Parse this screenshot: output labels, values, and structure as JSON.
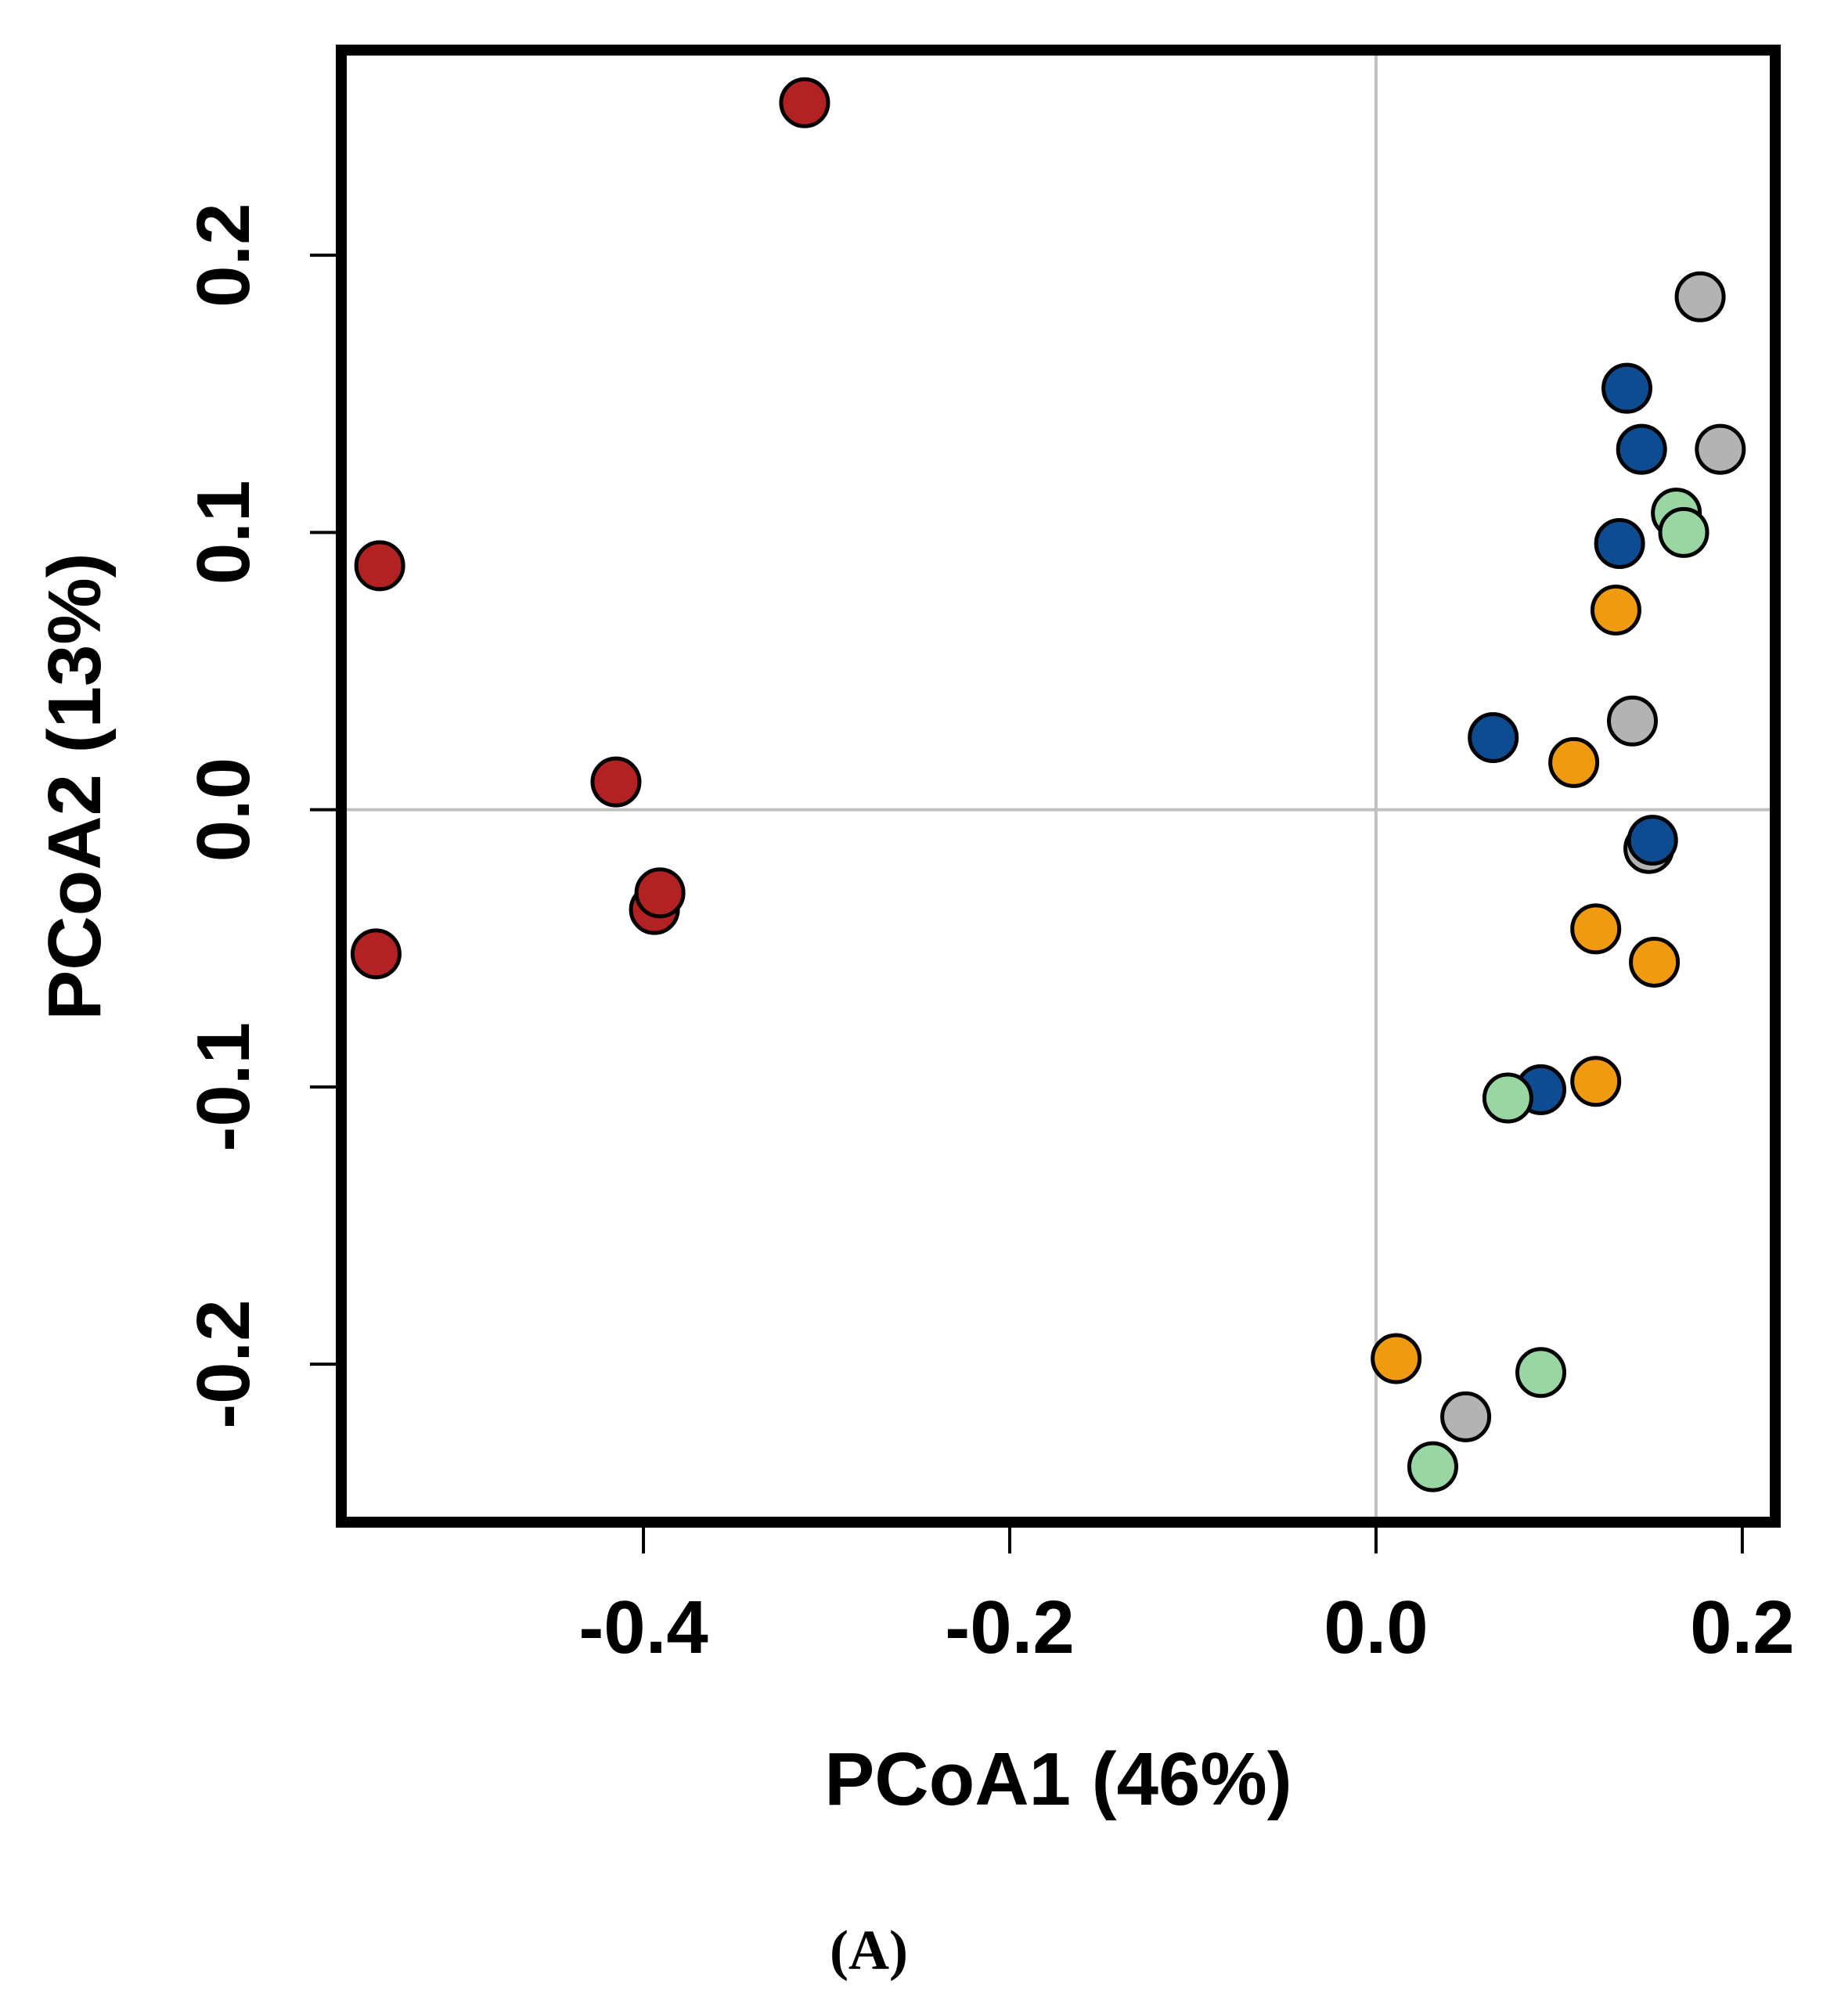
{
  "chart_data": {
    "type": "scatter",
    "title": "",
    "xlabel": "PCoA1 (46%)",
    "ylabel": "PCoA2 (13%)",
    "panel_label": "(A)",
    "xlim": [
      -0.565,
      0.218
    ],
    "ylim": [
      -0.257,
      0.274
    ],
    "xticks": [
      -0.4,
      -0.2,
      0.0,
      0.2
    ],
    "xtick_labels": [
      "-0.4",
      "-0.2",
      "0.0",
      "0.2"
    ],
    "yticks": [
      -0.2,
      -0.1,
      0.0,
      0.1,
      0.2
    ],
    "ytick_labels": [
      "-0.2",
      "-0.1",
      "0.0",
      "0.1",
      "0.2"
    ],
    "reference_lines": {
      "x": 0.0,
      "y": 0.0,
      "color": "#c0c0c0"
    },
    "grid": false,
    "legend": "none",
    "series": [
      {
        "name": "red",
        "color": "#b22222",
        "points": [
          [
            -0.312,
            0.255
          ],
          [
            -0.544,
            0.088
          ],
          [
            -0.415,
            0.01
          ],
          [
            -0.394,
            -0.036
          ],
          [
            -0.391,
            -0.03
          ],
          [
            -0.546,
            -0.052
          ]
        ]
      },
      {
        "name": "gray",
        "color": "#b3b3b3",
        "points": [
          [
            0.177,
            0.185
          ],
          [
            0.188,
            0.13
          ],
          [
            0.14,
            0.032
          ],
          [
            0.149,
            -0.014
          ],
          [
            0.049,
            -0.219
          ]
        ]
      },
      {
        "name": "blue",
        "color": "#0e4c92",
        "points": [
          [
            0.137,
            0.152
          ],
          [
            0.145,
            0.13
          ],
          [
            0.133,
            0.096
          ],
          [
            0.064,
            0.026
          ],
          [
            0.151,
            -0.011
          ],
          [
            0.09,
            -0.101
          ]
        ]
      },
      {
        "name": "light green",
        "color": "#98d6a4",
        "points": [
          [
            0.164,
            0.107
          ],
          [
            0.168,
            0.1
          ],
          [
            0.072,
            -0.104
          ],
          [
            0.09,
            -0.203
          ],
          [
            0.031,
            -0.237
          ]
        ]
      },
      {
        "name": "orange",
        "color": "#f09a0f",
        "points": [
          [
            0.131,
            0.072
          ],
          [
            0.108,
            0.017
          ],
          [
            0.12,
            -0.043
          ],
          [
            0.152,
            -0.055
          ],
          [
            0.12,
            -0.098
          ],
          [
            0.011,
            -0.198
          ]
        ]
      }
    ]
  }
}
